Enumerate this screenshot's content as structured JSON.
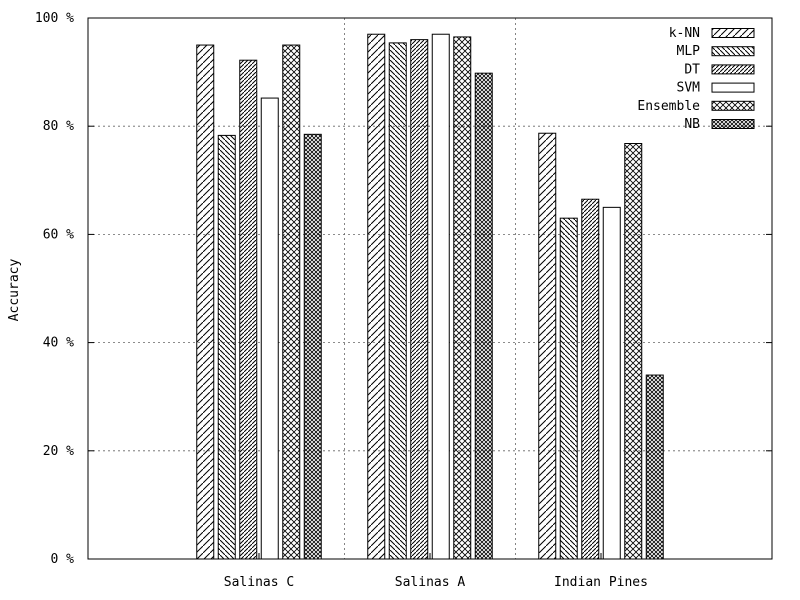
{
  "chart_data": {
    "type": "bar",
    "title": "",
    "xlabel": "",
    "ylabel": "Accuracy",
    "ylim": [
      0,
      100
    ],
    "yticks": [
      0,
      20,
      40,
      60,
      80,
      100
    ],
    "ytick_labels": [
      "0 %",
      "20 %",
      "40 %",
      "60 %",
      "80 %",
      "100 %"
    ],
    "grid": true,
    "legend_position": "top-right",
    "categories": [
      "Salinas C",
      "Salinas A",
      "Indian Pines"
    ],
    "series": [
      {
        "name": "k-NN",
        "pattern": "diag-right",
        "values": [
          95,
          97,
          78.7
        ]
      },
      {
        "name": "MLP",
        "pattern": "diag-left",
        "values": [
          78.3,
          95.4,
          63
        ]
      },
      {
        "name": "DT",
        "pattern": "diag-right-dense",
        "values": [
          92.2,
          96,
          66.5
        ]
      },
      {
        "name": "SVM",
        "pattern": "empty",
        "values": [
          85.2,
          97,
          65
        ]
      },
      {
        "name": "Ensemble",
        "pattern": "crosshatch",
        "values": [
          95,
          96.5,
          76.8
        ]
      },
      {
        "name": "NB",
        "pattern": "crosshatch-dense",
        "values": [
          78.5,
          89.8,
          34
        ]
      }
    ]
  }
}
